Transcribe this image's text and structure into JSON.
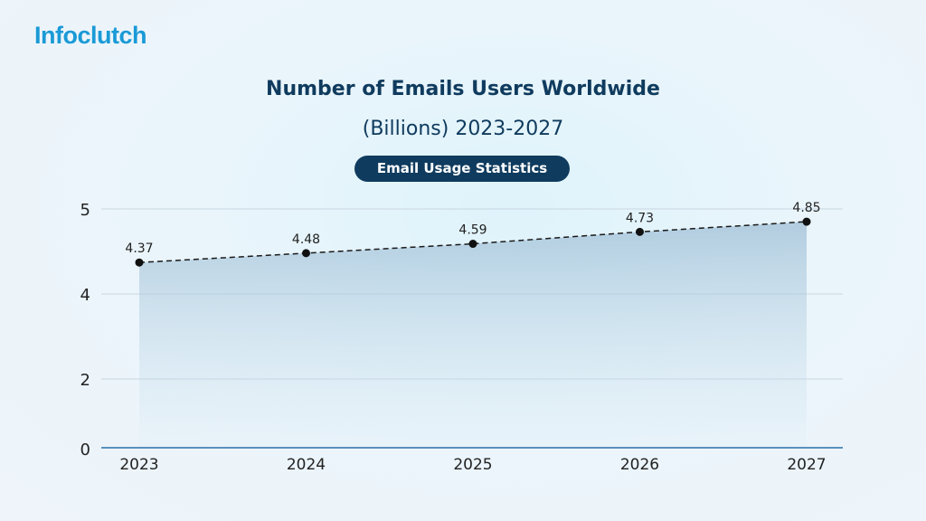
{
  "logo": "Infoclutch",
  "header": {
    "title_line1": "Number of Emails Users Worldwide",
    "title_line2": "(Billions) 2023-2027",
    "badge": "Email Usage Statistics"
  },
  "chart_data": {
    "type": "line",
    "title": "Number of Emails Users Worldwide (Billions) 2023-2027",
    "categories": [
      "2023",
      "2024",
      "2025",
      "2026",
      "2027"
    ],
    "values": [
      4.37,
      4.48,
      4.59,
      4.73,
      4.85
    ],
    "yticks": [
      0,
      2,
      4,
      5
    ],
    "ylim": [
      0,
      5
    ],
    "grid": true,
    "line_style": "dashed",
    "area_fill": true,
    "colors": {
      "line": "#1a1a1a",
      "fill": "#9fbfd6",
      "axis": "#2a6fa8",
      "grid": "#c9d6e2"
    }
  }
}
